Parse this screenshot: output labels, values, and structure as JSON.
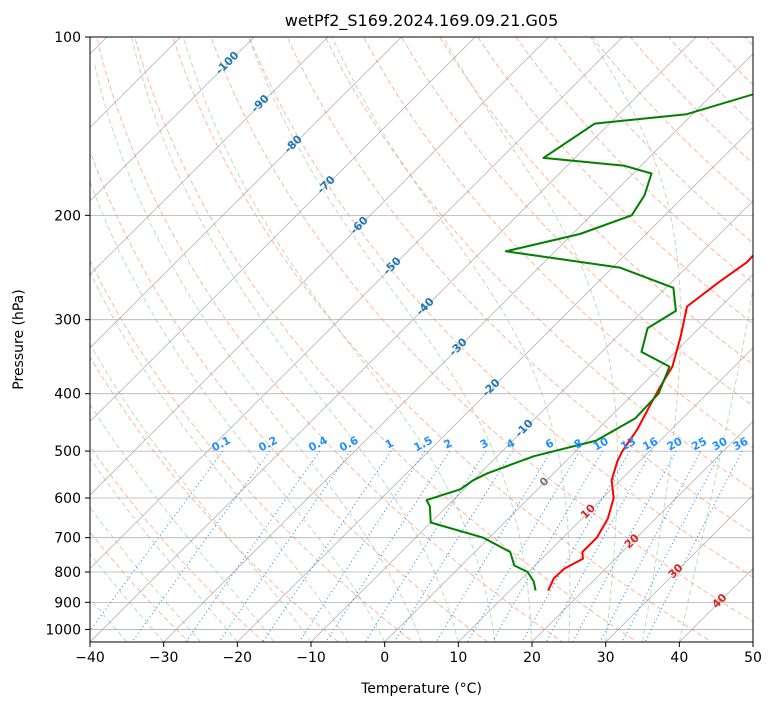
{
  "chart_data": {
    "type": "line",
    "subtype": "skew-t log-p",
    "title": "wetPf2_S169.2024.169.09.21.G05",
    "xlabel": "Temperature (°C)",
    "ylabel": "Pressure (hPa)",
    "xlim": [
      -40,
      50
    ],
    "ylim": [
      1050,
      100
    ],
    "y_scale": "log",
    "x_ticks": [
      "−40",
      "−30",
      "−20",
      "−10",
      "0",
      "10",
      "20",
      "30",
      "40",
      "50"
    ],
    "y_ticks": [
      100,
      200,
      300,
      400,
      500,
      600,
      700,
      800,
      900,
      1000
    ],
    "grid": true,
    "series": [
      {
        "role": "temperature",
        "color": "#ff0000",
        "points": [
          [
            15.2,
            860
          ],
          [
            14.3,
            820
          ],
          [
            14.4,
            790
          ],
          [
            15.6,
            760
          ],
          [
            14.6,
            740
          ],
          [
            14.6,
            700
          ],
          [
            13.5,
            650
          ],
          [
            11.5,
            600
          ],
          [
            8.8,
            560
          ],
          [
            7.0,
            520
          ],
          [
            6.3,
            500
          ],
          [
            5.4,
            460
          ],
          [
            3.9,
            420
          ],
          [
            2.7,
            390
          ],
          [
            1.6,
            360
          ],
          [
            -1.4,
            320
          ],
          [
            -4.6,
            285
          ],
          [
            -3.6,
            260
          ],
          [
            -2.5,
            240
          ],
          [
            -3.0,
            200
          ],
          [
            -4.5,
            180
          ],
          [
            -8.0,
            160
          ],
          [
            -11.0,
            140
          ],
          [
            -13.8,
            125
          ],
          [
            -16.0,
            118
          ],
          [
            -17.7,
            110
          ],
          [
            -21.0,
            100
          ]
        ]
      },
      {
        "role": "dewpoint",
        "color": "#008000",
        "points": [
          [
            13.5,
            860
          ],
          [
            12.0,
            830
          ],
          [
            9.9,
            800
          ],
          [
            7.2,
            780
          ],
          [
            4.8,
            740
          ],
          [
            -0.8,
            700
          ],
          [
            -10.0,
            660
          ],
          [
            -12.3,
            620
          ],
          [
            -13.6,
            605
          ],
          [
            -10.5,
            580
          ],
          [
            -10.0,
            560
          ],
          [
            -9.0,
            545
          ],
          [
            -5.0,
            510
          ],
          [
            1.3,
            480
          ],
          [
            3.6,
            440
          ],
          [
            3.4,
            400
          ],
          [
            1.2,
            360
          ],
          [
            -4.6,
            340
          ],
          [
            -7.0,
            310
          ],
          [
            -5.5,
            290
          ],
          [
            -9.0,
            265
          ],
          [
            -19.0,
            245
          ],
          [
            -36.7,
            230
          ],
          [
            -29.0,
            215
          ],
          [
            -24.5,
            200
          ],
          [
            -25.5,
            185
          ],
          [
            -27.5,
            170
          ],
          [
            -32.2,
            165
          ],
          [
            -44.3,
            160
          ],
          [
            -42.0,
            140
          ],
          [
            -30.8,
            135
          ],
          [
            -24.5,
            125
          ],
          [
            -24.3,
            115
          ],
          [
            -25.5,
            110
          ],
          [
            -26.0,
            100
          ]
        ]
      }
    ],
    "dry_adiabat_labels": [
      "-100",
      "-90",
      "-80",
      "-70",
      "-60",
      "-50",
      "-40",
      "-30",
      "-20",
      "-10"
    ],
    "moist_adiabat_labels": [
      "0",
      "10",
      "20",
      "30",
      "40"
    ],
    "mixing_ratio_labels": [
      "0.1",
      "0.2",
      "0.4",
      "0.6",
      "1",
      "1.5",
      "2",
      "3",
      "4",
      "6",
      "8",
      "10",
      "13",
      "16",
      "20",
      "25",
      "30",
      "36"
    ],
    "colors": {
      "temperature": "#ff0000",
      "dewpoint": "#008000",
      "dry_adiabat": "#ffa07a",
      "moist_adiabat": "#8fbc8f",
      "mixing_ratio": "#1e90ff",
      "dry_adiabat_label": "#1f77b4",
      "moist_adiabat_label": "#d62728",
      "isotherm": "#a0a0a0",
      "isobar": "#a0a0a0"
    }
  }
}
